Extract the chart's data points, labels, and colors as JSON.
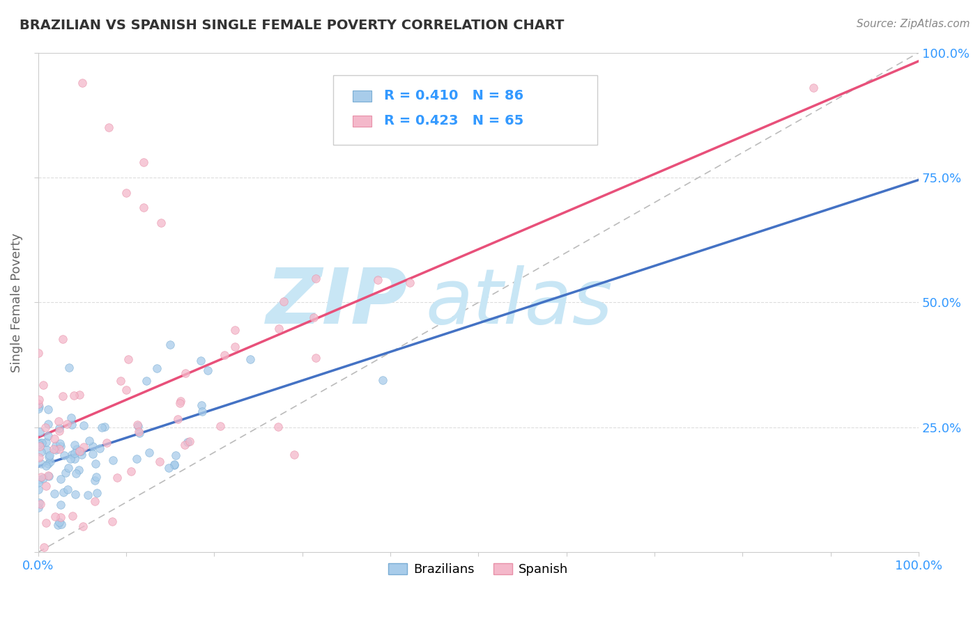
{
  "title": "BRAZILIAN VS SPANISH SINGLE FEMALE POVERTY CORRELATION CHART",
  "source_text": "Source: ZipAtlas.com",
  "ylabel": "Single Female Poverty",
  "xlim": [
    0.0,
    1.0
  ],
  "ylim": [
    0.0,
    1.0
  ],
  "legend_R1": "0.410",
  "legend_N1": "86",
  "legend_R2": "0.423",
  "legend_N2": "65",
  "brazil_color": "#A8CCEA",
  "spanish_color": "#F4B8CA",
  "brazil_edge": "#7AADD4",
  "spanish_edge": "#E890A8",
  "reg_line_brazil_color": "#4472C4",
  "reg_line_spanish_color": "#E8507A",
  "ref_line_color": "#BBBBBB",
  "watermark_zip": "ZIP",
  "watermark_atlas": "atlas",
  "watermark_color": "#C8E6F5",
  "background_color": "#FFFFFF",
  "title_color": "#333333",
  "axis_label_color": "#666666",
  "tick_label_color": "#3399FF",
  "stat_label_color": "#222222",
  "marker_size": 70,
  "marker_alpha": 0.75,
  "brazil_intercept": 0.18,
  "brazil_slope": 0.52,
  "spanish_intercept": 0.2,
  "spanish_slope": 0.65
}
